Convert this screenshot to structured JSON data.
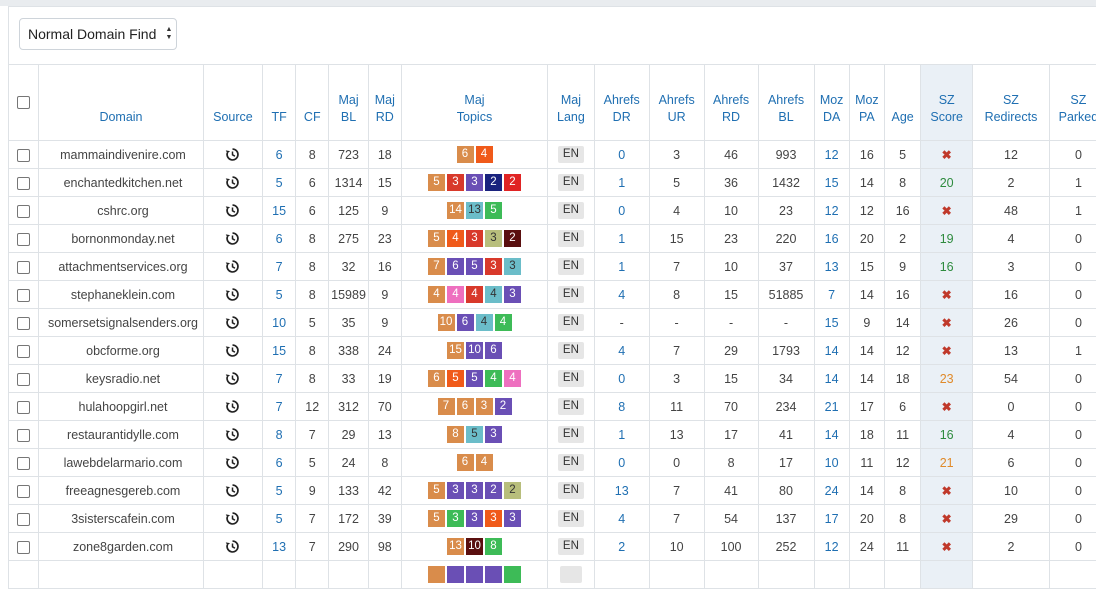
{
  "filter_select": {
    "value": "Normal Domain Find"
  },
  "headers": [
    [
      "Domain"
    ],
    [
      "Source"
    ],
    [
      "TF"
    ],
    [
      "CF"
    ],
    [
      "Maj",
      "BL"
    ],
    [
      "Maj",
      "RD"
    ],
    [
      "Maj",
      "Topics"
    ],
    [
      "Maj",
      "Lang"
    ],
    [
      "Ahrefs",
      "DR"
    ],
    [
      "Ahrefs",
      "UR"
    ],
    [
      "Ahrefs",
      "RD"
    ],
    [
      "Ahrefs",
      "BL"
    ],
    [
      "Moz",
      "DA"
    ],
    [
      "Moz",
      "PA"
    ],
    [
      "Age"
    ],
    [
      "SZ",
      "Score"
    ],
    [
      "SZ",
      "Redirects"
    ],
    [
      "SZ",
      "Parked"
    ]
  ],
  "topic_colors": {
    "orange": "#d98c4b",
    "red": "#d8392b",
    "purple": "#6a4fb5",
    "navy": "#1a237e",
    "brightred": "#e02424",
    "teal": "#6bbdc9",
    "green": "#3dbb57",
    "olive": "#b8be7c",
    "maroon": "#5a0f0f",
    "pink": "#ee6fbf",
    "bgorange": "#f05a1a",
    "lightgreen": "#a6c86a"
  },
  "rows": [
    {
      "domain": "mammaindivenire.com",
      "tf": "6",
      "cf": "8",
      "bl": "723",
      "rd": "18",
      "topics": [
        [
          "6",
          "orange"
        ],
        [
          "4",
          "bgorange"
        ]
      ],
      "lang": "EN",
      "dr": "0",
      "ur": "3",
      "ahrd": "46",
      "ahbl": "993",
      "da": "12",
      "pa": "16",
      "age": "5",
      "score": "x",
      "redir": "12",
      "parked": "0"
    },
    {
      "domain": "enchantedkitchen.net",
      "tf": "5",
      "cf": "6",
      "bl": "1314",
      "rd": "15",
      "topics": [
        [
          "5",
          "orange"
        ],
        [
          "3",
          "red"
        ],
        [
          "3",
          "purple"
        ],
        [
          "2",
          "navy"
        ],
        [
          "2",
          "brightred"
        ]
      ],
      "lang": "EN",
      "dr": "1",
      "ur": "5",
      "ahrd": "36",
      "ahbl": "1432",
      "da": "15",
      "pa": "14",
      "age": "8",
      "score": "20",
      "scoreColor": "green",
      "redir": "2",
      "parked": "1"
    },
    {
      "domain": "cshrc.org",
      "tf": "15",
      "cf": "6",
      "bl": "125",
      "rd": "9",
      "topics": [
        [
          "14",
          "orange"
        ],
        [
          "13",
          "teal"
        ],
        [
          "5",
          "green"
        ]
      ],
      "lang": "EN",
      "dr": "0",
      "ur": "4",
      "ahrd": "10",
      "ahbl": "23",
      "da": "12",
      "pa": "12",
      "age": "16",
      "score": "x",
      "redir": "48",
      "parked": "1"
    },
    {
      "domain": "bornonmonday.net",
      "tf": "6",
      "cf": "8",
      "bl": "275",
      "rd": "23",
      "topics": [
        [
          "5",
          "orange"
        ],
        [
          "4",
          "bgorange"
        ],
        [
          "3",
          "red"
        ],
        [
          "3",
          "olive"
        ],
        [
          "2",
          "maroon"
        ]
      ],
      "lang": "EN",
      "dr": "1",
      "ur": "15",
      "ahrd": "23",
      "ahbl": "220",
      "da": "16",
      "pa": "20",
      "age": "2",
      "score": "19",
      "scoreColor": "green",
      "redir": "4",
      "parked": "0"
    },
    {
      "domain": "attachmentservices.org",
      "tf": "7",
      "cf": "8",
      "bl": "32",
      "rd": "16",
      "topics": [
        [
          "7",
          "orange"
        ],
        [
          "6",
          "purple"
        ],
        [
          "5",
          "purple"
        ],
        [
          "3",
          "red"
        ],
        [
          "3",
          "teal"
        ]
      ],
      "lang": "EN",
      "dr": "1",
      "ur": "7",
      "ahrd": "10",
      "ahbl": "37",
      "da": "13",
      "pa": "15",
      "age": "9",
      "score": "16",
      "scoreColor": "green",
      "redir": "3",
      "parked": "0"
    },
    {
      "domain": "stephaneklein.com",
      "tf": "5",
      "cf": "8",
      "bl": "15989",
      "rd": "9",
      "topics": [
        [
          "4",
          "orange"
        ],
        [
          "4",
          "pink"
        ],
        [
          "4",
          "red"
        ],
        [
          "4",
          "teal"
        ],
        [
          "3",
          "purple"
        ]
      ],
      "lang": "EN",
      "dr": "4",
      "ur": "8",
      "ahrd": "15",
      "ahbl": "51885",
      "da": "7",
      "pa": "14",
      "age": "16",
      "score": "x",
      "redir": "16",
      "parked": "0"
    },
    {
      "domain": "somersetsignalsenders.org",
      "tf": "10",
      "cf": "5",
      "bl": "35",
      "rd": "9",
      "topics": [
        [
          "10",
          "orange"
        ],
        [
          "6",
          "purple"
        ],
        [
          "4",
          "teal"
        ],
        [
          "4",
          "green"
        ]
      ],
      "lang": "EN",
      "dr": "-",
      "ur": "-",
      "ahrd": "-",
      "ahbl": "-",
      "da": "15",
      "pa": "9",
      "age": "14",
      "score": "x",
      "redir": "26",
      "parked": "0"
    },
    {
      "domain": "obcforme.org",
      "tf": "15",
      "cf": "8",
      "bl": "338",
      "rd": "24",
      "topics": [
        [
          "15",
          "orange"
        ],
        [
          "10",
          "purple"
        ],
        [
          "6",
          "purple"
        ]
      ],
      "lang": "EN",
      "dr": "4",
      "ur": "7",
      "ahrd": "29",
      "ahbl": "1793",
      "da": "14",
      "pa": "14",
      "age": "12",
      "score": "x",
      "redir": "13",
      "parked": "1"
    },
    {
      "domain": "keysradio.net",
      "tf": "7",
      "cf": "8",
      "bl": "33",
      "rd": "19",
      "topics": [
        [
          "6",
          "orange"
        ],
        [
          "5",
          "bgorange"
        ],
        [
          "5",
          "purple"
        ],
        [
          "4",
          "green"
        ],
        [
          "4",
          "pink"
        ]
      ],
      "lang": "EN",
      "dr": "0",
      "ur": "3",
      "ahrd": "15",
      "ahbl": "34",
      "da": "14",
      "pa": "14",
      "age": "18",
      "score": "23",
      "scoreColor": "orange",
      "redir": "54",
      "parked": "0"
    },
    {
      "domain": "hulahoopgirl.net",
      "tf": "7",
      "cf": "12",
      "bl": "312",
      "rd": "70",
      "topics": [
        [
          "7",
          "orange"
        ],
        [
          "6",
          "orange"
        ],
        [
          "3",
          "orange"
        ],
        [
          "2",
          "purple"
        ]
      ],
      "lang": "EN",
      "dr": "8",
      "ur": "11",
      "ahrd": "70",
      "ahbl": "234",
      "da": "21",
      "pa": "17",
      "age": "6",
      "score": "x",
      "redir": "0",
      "parked": "0"
    },
    {
      "domain": "restaurantidylle.com",
      "tf": "8",
      "cf": "7",
      "bl": "29",
      "rd": "13",
      "topics": [
        [
          "8",
          "orange"
        ],
        [
          "5",
          "teal"
        ],
        [
          "3",
          "purple"
        ]
      ],
      "lang": "EN",
      "dr": "1",
      "ur": "13",
      "ahrd": "17",
      "ahbl": "41",
      "da": "14",
      "pa": "18",
      "age": "11",
      "score": "16",
      "scoreColor": "green",
      "redir": "4",
      "parked": "0"
    },
    {
      "domain": "lawebdelarmario.com",
      "tf": "6",
      "cf": "5",
      "bl": "24",
      "rd": "8",
      "topics": [
        [
          "6",
          "orange"
        ],
        [
          "4",
          "orange"
        ]
      ],
      "lang": "EN",
      "dr": "0",
      "ur": "0",
      "ahrd": "8",
      "ahbl": "17",
      "da": "10",
      "pa": "11",
      "age": "12",
      "score": "21",
      "scoreColor": "orange",
      "redir": "6",
      "parked": "0"
    },
    {
      "domain": "freeagnesgereb.com",
      "tf": "5",
      "cf": "9",
      "bl": "133",
      "rd": "42",
      "topics": [
        [
          "5",
          "orange"
        ],
        [
          "3",
          "purple"
        ],
        [
          "3",
          "purple"
        ],
        [
          "2",
          "purple"
        ],
        [
          "2",
          "olive"
        ]
      ],
      "lang": "EN",
      "dr": "13",
      "ur": "7",
      "ahrd": "41",
      "ahbl": "80",
      "da": "24",
      "pa": "14",
      "age": "8",
      "score": "x",
      "redir": "10",
      "parked": "0"
    },
    {
      "domain": "3sisterscafein.com",
      "tf": "5",
      "cf": "7",
      "bl": "172",
      "rd": "39",
      "topics": [
        [
          "5",
          "orange"
        ],
        [
          "3",
          "green"
        ],
        [
          "3",
          "purple"
        ],
        [
          "3",
          "bgorange"
        ],
        [
          "3",
          "purple"
        ]
      ],
      "lang": "EN",
      "dr": "4",
      "ur": "7",
      "ahrd": "54",
      "ahbl": "137",
      "da": "17",
      "pa": "20",
      "age": "8",
      "score": "x",
      "redir": "29",
      "parked": "0"
    },
    {
      "domain": "zone8garden.com",
      "tf": "13",
      "cf": "7",
      "bl": "290",
      "rd": "98",
      "topics": [
        [
          "13",
          "orange"
        ],
        [
          "10",
          "maroon"
        ],
        [
          "8",
          "green"
        ]
      ],
      "lang": "EN",
      "dr": "2",
      "ur": "10",
      "ahrd": "100",
      "ahbl": "252",
      "da": "12",
      "pa": "24",
      "age": "11",
      "score": "x",
      "redir": "2",
      "parked": "0"
    }
  ],
  "partial_row_topics": [
    [
      "",
      "orange"
    ],
    [
      "",
      "purple"
    ],
    [
      "",
      "purple"
    ],
    [
      "",
      "purple"
    ],
    [
      "",
      "green"
    ]
  ],
  "icons": {
    "source": "history-icon",
    "not_ok": "x-mark-icon"
  }
}
